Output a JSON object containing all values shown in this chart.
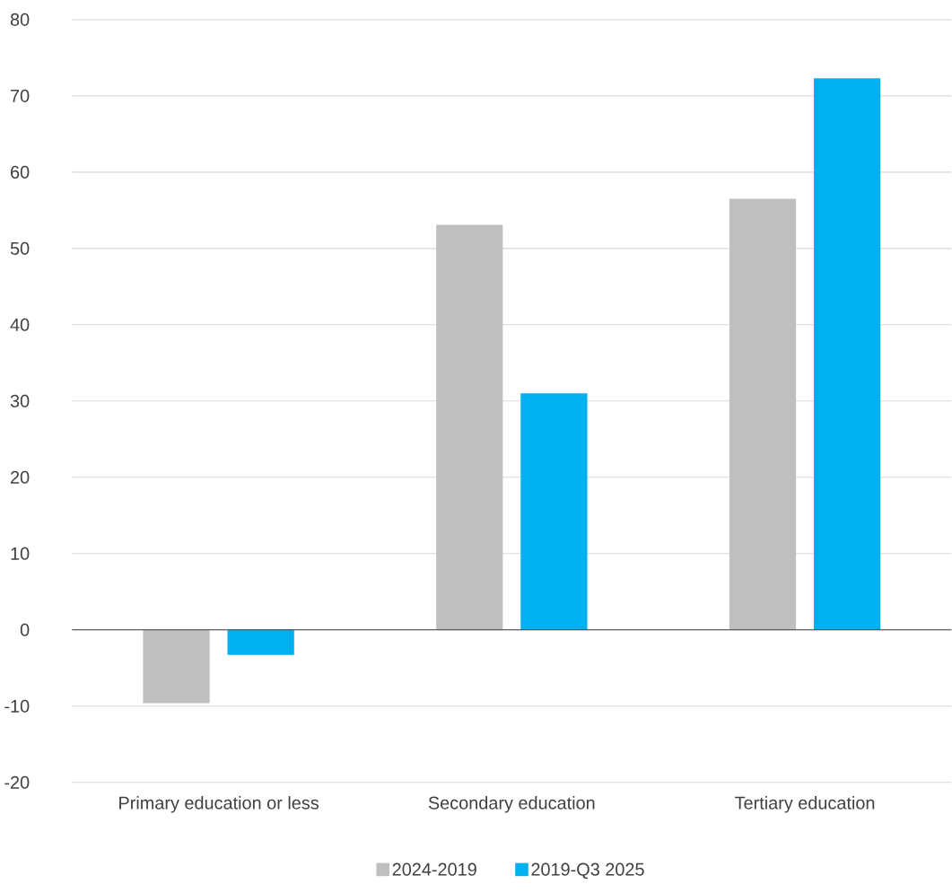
{
  "chart_data": {
    "type": "bar",
    "categories": [
      "Primary education or less",
      "Secondary education",
      "Tertiary education"
    ],
    "series": [
      {
        "name": "2024-2019",
        "color": "#bfbfbf",
        "values": [
          -9.6,
          53.1,
          56.5
        ]
      },
      {
        "name": "2019-Q3 2025",
        "color": "#00b0f0",
        "values": [
          -3.3,
          31.0,
          72.3
        ]
      }
    ],
    "ylim": [
      -20,
      80
    ],
    "yticks": [
      -20,
      -10,
      0,
      10,
      20,
      30,
      40,
      50,
      60,
      70,
      80
    ],
    "grid": "y",
    "legend": "bottom"
  }
}
